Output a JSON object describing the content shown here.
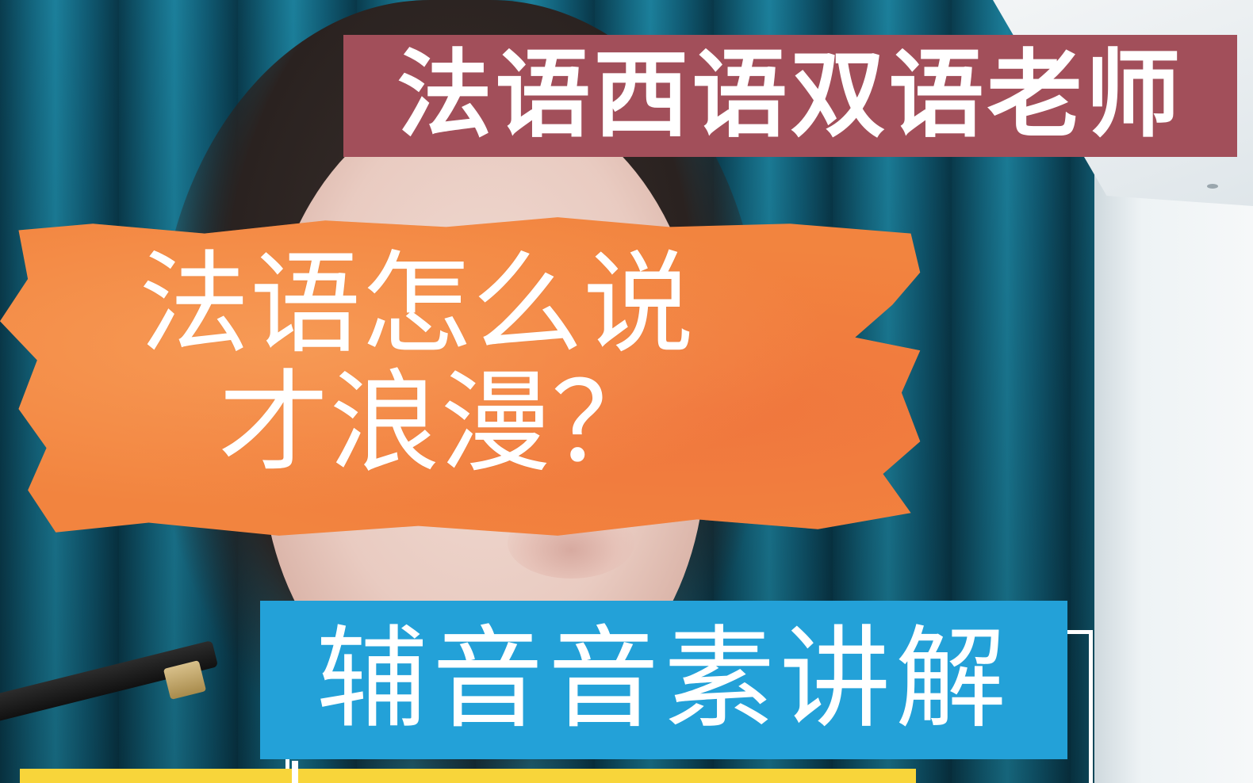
{
  "title_banner": {
    "text": "法语西语双语老师",
    "color": "#a24f5a"
  },
  "headline": {
    "line1": "法语怎么说",
    "line2": "才浪漫？",
    "color": "#f2843f"
  },
  "subtitle_box": {
    "text": "辅音音素讲解",
    "color": "#23a1d8"
  },
  "accent_colors": {
    "yellow": "#f8d53a",
    "curtain": "#146a84"
  }
}
